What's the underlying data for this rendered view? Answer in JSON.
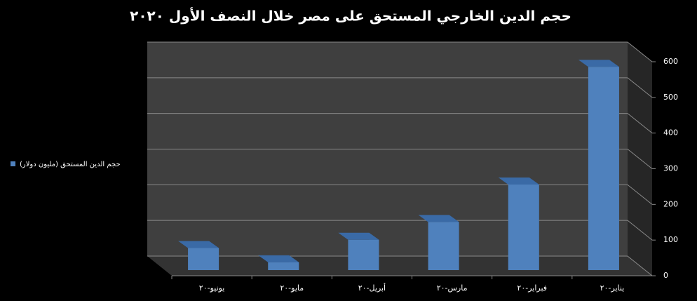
{
  "chart_data": {
    "type": "bar3d",
    "title": "حجم الدين الخارجي المستحق على مصر خلال النصف الأول ٢٠٢٠",
    "categories": [
      "يونيو-٢٠",
      "مايو-٢٠",
      "أبريل-٢٠",
      "مارس-٢٠",
      "فبراير-٢٠",
      "يناير-٢٠"
    ],
    "series": [
      {
        "name": "حجم الدين المستحق (مليون دولار)",
        "color": "#4f81bd",
        "values": [
          62,
          22,
          85,
          135,
          240,
          570
        ]
      }
    ],
    "ylim": [
      0,
      600
    ],
    "yticks": [
      0,
      100,
      200,
      300,
      400,
      500,
      600
    ],
    "grid": true,
    "legend": "left"
  }
}
